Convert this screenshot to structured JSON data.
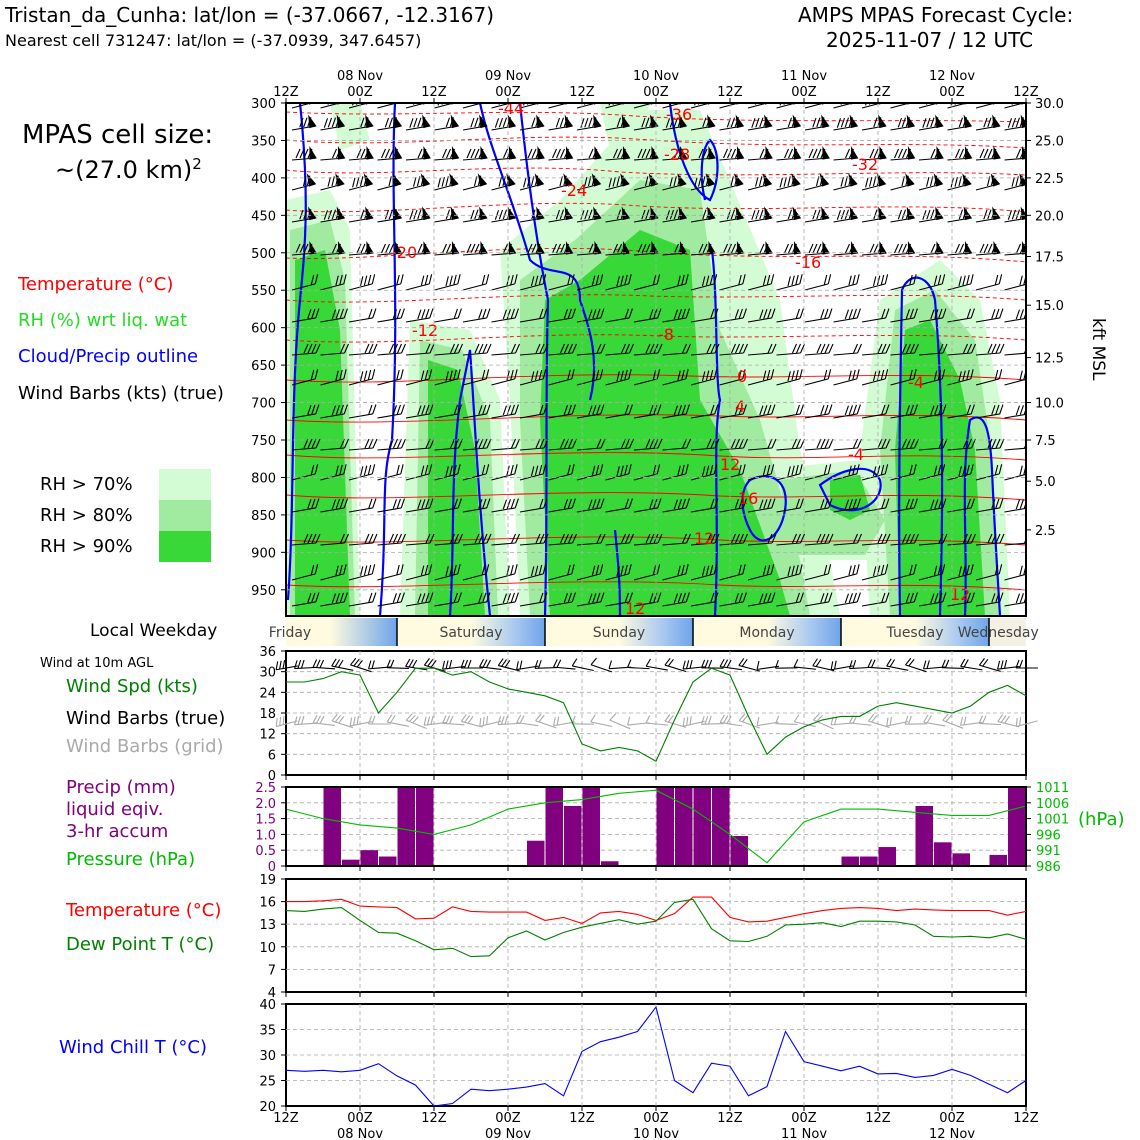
{
  "header": {
    "station_line": "Tristan_da_Cunha: lat/lon = (-37.0667, -12.3167)",
    "cell_line": "Nearest cell 731247: lat/lon = (-37.0939, 347.6457)",
    "cycle_title": "AMPS MPAS Forecast Cycle:",
    "cycle_time": "2025-11-07 / 12 UTC"
  },
  "sidebar": {
    "cell_size_label": "MPAS cell size:",
    "cell_size_value": "~(27.0 km)",
    "cell_size_exp": "2",
    "legend_temperature": "Temperature (°C)",
    "legend_rh": "RH (%) wrt liq. wat",
    "legend_cloud": "Cloud/Precip outline",
    "legend_wind": "Wind Barbs (kts) (true)",
    "rh_levels": [
      {
        "label": "RH > 70%",
        "color": "#d4fcd4"
      },
      {
        "label": "RH > 80%",
        "color": "#a0eba0"
      },
      {
        "label": "RH > 90%",
        "color": "#38d838"
      }
    ],
    "local_weekday_label": "Local Weekday",
    "wind10m_title": "Wind at 10m AGL",
    "wind_spd_label": "Wind Spd (kts)",
    "wind_barbs_true_label": "Wind Barbs (true)",
    "wind_barbs_grid_label": "Wind Barbs (grid)",
    "precip_label_1": "Precip (mm)",
    "precip_label_2": "liquid eqiv.",
    "precip_label_3": "3-hr accum",
    "pressure_label": "Pressure (hPa)",
    "pressure_unit": "(hPa)",
    "temp_label": "Temperature (°C)",
    "dew_label": "Dew Point T (°C)",
    "chill_label": "Wind Chill T (°C)",
    "kft_label": "kft MSL"
  },
  "colors": {
    "temperature": "#ff0000",
    "rh_green": "#22bb22",
    "cloud": "#0000ff",
    "wind": "#000000",
    "grid_wind": "#aaaaaa",
    "precip": "#800080",
    "pressure": "#00bb00",
    "dewpoint": "#008000",
    "windchill": "#0000ff"
  },
  "chart_data": [
    {
      "type": "heatmap",
      "name": "cross-section",
      "time_ticks": [
        "12Z",
        "00Z",
        "12Z",
        "00Z",
        "12Z",
        "00Z",
        "12Z",
        "00Z",
        "12Z",
        "00Z",
        "12Z"
      ],
      "date_ticks": [
        "08 Nov",
        "09 Nov",
        "10 Nov",
        "11 Nov",
        "12 Nov"
      ],
      "pressure_ticks": [
        "300",
        "350",
        "400",
        "450",
        "500",
        "550",
        "600",
        "650",
        "700",
        "750",
        "800",
        "850",
        "900",
        "950"
      ],
      "kft_ticks": [
        "30.0",
        "25.0",
        "22.5",
        "20.0",
        "17.5",
        "15.0",
        "12.5",
        "10.0",
        "7.5",
        "5.0",
        "2.5"
      ],
      "temperature_labels": [
        "-44",
        "-36",
        "-28",
        "-24",
        "-20",
        "-16",
        "-12",
        "-8",
        "0",
        "4",
        "-4",
        "12",
        "-4",
        "16",
        "12",
        "12",
        "12",
        "-32"
      ],
      "ylim": [
        300,
        985
      ],
      "xlim_hours": [
        0,
        120
      ]
    },
    {
      "type": "table",
      "name": "local-weekday",
      "days": [
        "Friday",
        "Saturday",
        "Sunday",
        "Monday",
        "Tuesday",
        "Wednesday"
      ]
    },
    {
      "type": "line",
      "name": "wind-10m",
      "ylabel": "Wind Spd (kts)",
      "ylim": [
        0,
        36
      ],
      "yticks": [
        "0",
        "6",
        "12",
        "18",
        "24",
        "30",
        "36"
      ],
      "x_hours": [
        0,
        3,
        6,
        9,
        12,
        15,
        18,
        21,
        24,
        27,
        30,
        33,
        36,
        39,
        42,
        45,
        48,
        51,
        54,
        57,
        60,
        63,
        66,
        69,
        72,
        75,
        78,
        81,
        84,
        87,
        90,
        93,
        96,
        99,
        102,
        105,
        108,
        111,
        114,
        117,
        120
      ],
      "series": [
        {
          "name": "Wind Spd",
          "values": [
            27,
            27,
            28,
            30,
            29,
            18,
            24,
            31,
            31,
            29,
            30,
            27,
            25,
            24,
            23,
            21,
            9,
            7,
            8,
            7,
            4,
            16,
            27,
            31,
            29,
            17,
            6,
            11,
            14,
            16,
            17,
            17,
            20,
            21,
            20,
            19,
            18,
            20,
            24,
            26,
            23
          ]
        }
      ]
    },
    {
      "type": "bar",
      "name": "precip-pressure",
      "ylabel": "Precip (mm)",
      "ylim": [
        0,
        2.5
      ],
      "yticks": [
        "0",
        "0.5",
        "1.0",
        "1.5",
        "2.0",
        "2.5"
      ],
      "pressure_ticks": [
        "986",
        "991",
        "996",
        "1001",
        "1006",
        "1011"
      ],
      "pressure_ylim": [
        986,
        1011
      ],
      "x_hours": [
        6,
        9,
        12,
        15,
        18,
        21,
        24,
        27,
        30,
        33,
        36,
        39,
        42,
        45,
        48,
        51,
        54,
        57,
        60,
        63,
        66,
        69,
        72,
        75,
        78,
        81,
        84,
        87,
        90,
        93,
        96,
        99,
        102,
        105,
        108,
        111,
        114,
        117
      ],
      "values": [
        2.5,
        0.2,
        0.5,
        0.3,
        2.5,
        2.5,
        0,
        0,
        0,
        0,
        0,
        0.8,
        2.5,
        1.9,
        2.5,
        0.15,
        0,
        0,
        2.5,
        2.5,
        2.5,
        2.5,
        0.95,
        0,
        0,
        0,
        0,
        0,
        0.3,
        0.3,
        0.6,
        0,
        1.9,
        0.75,
        0.4,
        0,
        0.35,
        2.5
      ],
      "pressure_x_hours": [
        0,
        6,
        12,
        18,
        24,
        30,
        36,
        42,
        48,
        54,
        60,
        66,
        72,
        78,
        84,
        90,
        96,
        102,
        108,
        114,
        120
      ],
      "pressure_values": [
        1004,
        1001,
        999,
        998,
        996,
        999,
        1004,
        1006,
        1007,
        1009,
        1010,
        1004,
        996,
        987,
        1000,
        1004,
        1004,
        1003,
        1002,
        1002,
        1005
      ]
    },
    {
      "type": "line",
      "name": "temperature-dewpoint",
      "ylim": [
        4,
        19
      ],
      "yticks": [
        "4",
        "7",
        "10",
        "13",
        "16",
        "19"
      ],
      "x_hours": [
        0,
        3,
        6,
        9,
        12,
        15,
        18,
        21,
        24,
        27,
        30,
        33,
        36,
        39,
        42,
        45,
        48,
        51,
        54,
        57,
        60,
        63,
        66,
        69,
        72,
        75,
        78,
        81,
        84,
        87,
        90,
        93,
        96,
        99,
        102,
        105,
        108,
        111,
        114,
        117,
        120
      ],
      "series": [
        {
          "name": "Temperature",
          "values": [
            16.0,
            16.0,
            16.1,
            16.3,
            15.4,
            15.3,
            15.2,
            13.7,
            13.8,
            15.3,
            14.7,
            14.6,
            14.6,
            14.6,
            13.5,
            13.9,
            13.1,
            14.5,
            14.7,
            14.3,
            13.5,
            14.4,
            16.6,
            16.6,
            13.9,
            13.3,
            13.4,
            13.9,
            14.4,
            14.8,
            15.1,
            15.2,
            15.1,
            14.8,
            15.0,
            14.9,
            14.8,
            14.8,
            14.8,
            14.2,
            14.7
          ]
        },
        {
          "name": "Dew Point",
          "values": [
            14.8,
            14.7,
            15.0,
            15.2,
            13.5,
            11.9,
            11.8,
            10.8,
            9.6,
            9.8,
            8.7,
            8.8,
            11.2,
            12.1,
            10.9,
            11.9,
            12.6,
            13.1,
            13.6,
            13.0,
            13.4,
            15.9,
            16.3,
            12.4,
            10.8,
            10.7,
            11.4,
            12.9,
            13.0,
            13.2,
            12.7,
            13.4,
            13.4,
            13.3,
            12.9,
            11.4,
            11.3,
            11.4,
            11.2,
            11.7,
            11.0
          ]
        }
      ]
    },
    {
      "type": "line",
      "name": "wind-chill",
      "ylabel": "Wind Chill T (°C)",
      "ylim": [
        20,
        40
      ],
      "yticks": [
        "20",
        "25",
        "30",
        "35",
        "40"
      ],
      "x_hours": [
        0,
        3,
        6,
        9,
        12,
        15,
        18,
        21,
        24,
        27,
        30,
        33,
        36,
        39,
        42,
        45,
        48,
        51,
        54,
        57,
        60,
        63,
        66,
        69,
        72,
        75,
        78,
        81,
        84,
        87,
        90,
        93,
        96,
        99,
        102,
        105,
        108,
        111,
        114,
        117,
        120
      ],
      "series": [
        {
          "name": "Wind Chill",
          "values": [
            27.0,
            26.8,
            27.0,
            26.7,
            27.0,
            28.3,
            25.9,
            24.1,
            20.0,
            20.5,
            23.3,
            23.0,
            23.3,
            23.7,
            24.4,
            22.0,
            30.7,
            32.6,
            33.5,
            34.6,
            39.4,
            25.0,
            22.6,
            28.4,
            27.8,
            22.0,
            23.8,
            34.6,
            28.7,
            27.8,
            26.9,
            27.8,
            26.3,
            26.4,
            25.6,
            26.0,
            27.2,
            26.0,
            24.3,
            22.6,
            25.0
          ]
        }
      ]
    }
  ]
}
